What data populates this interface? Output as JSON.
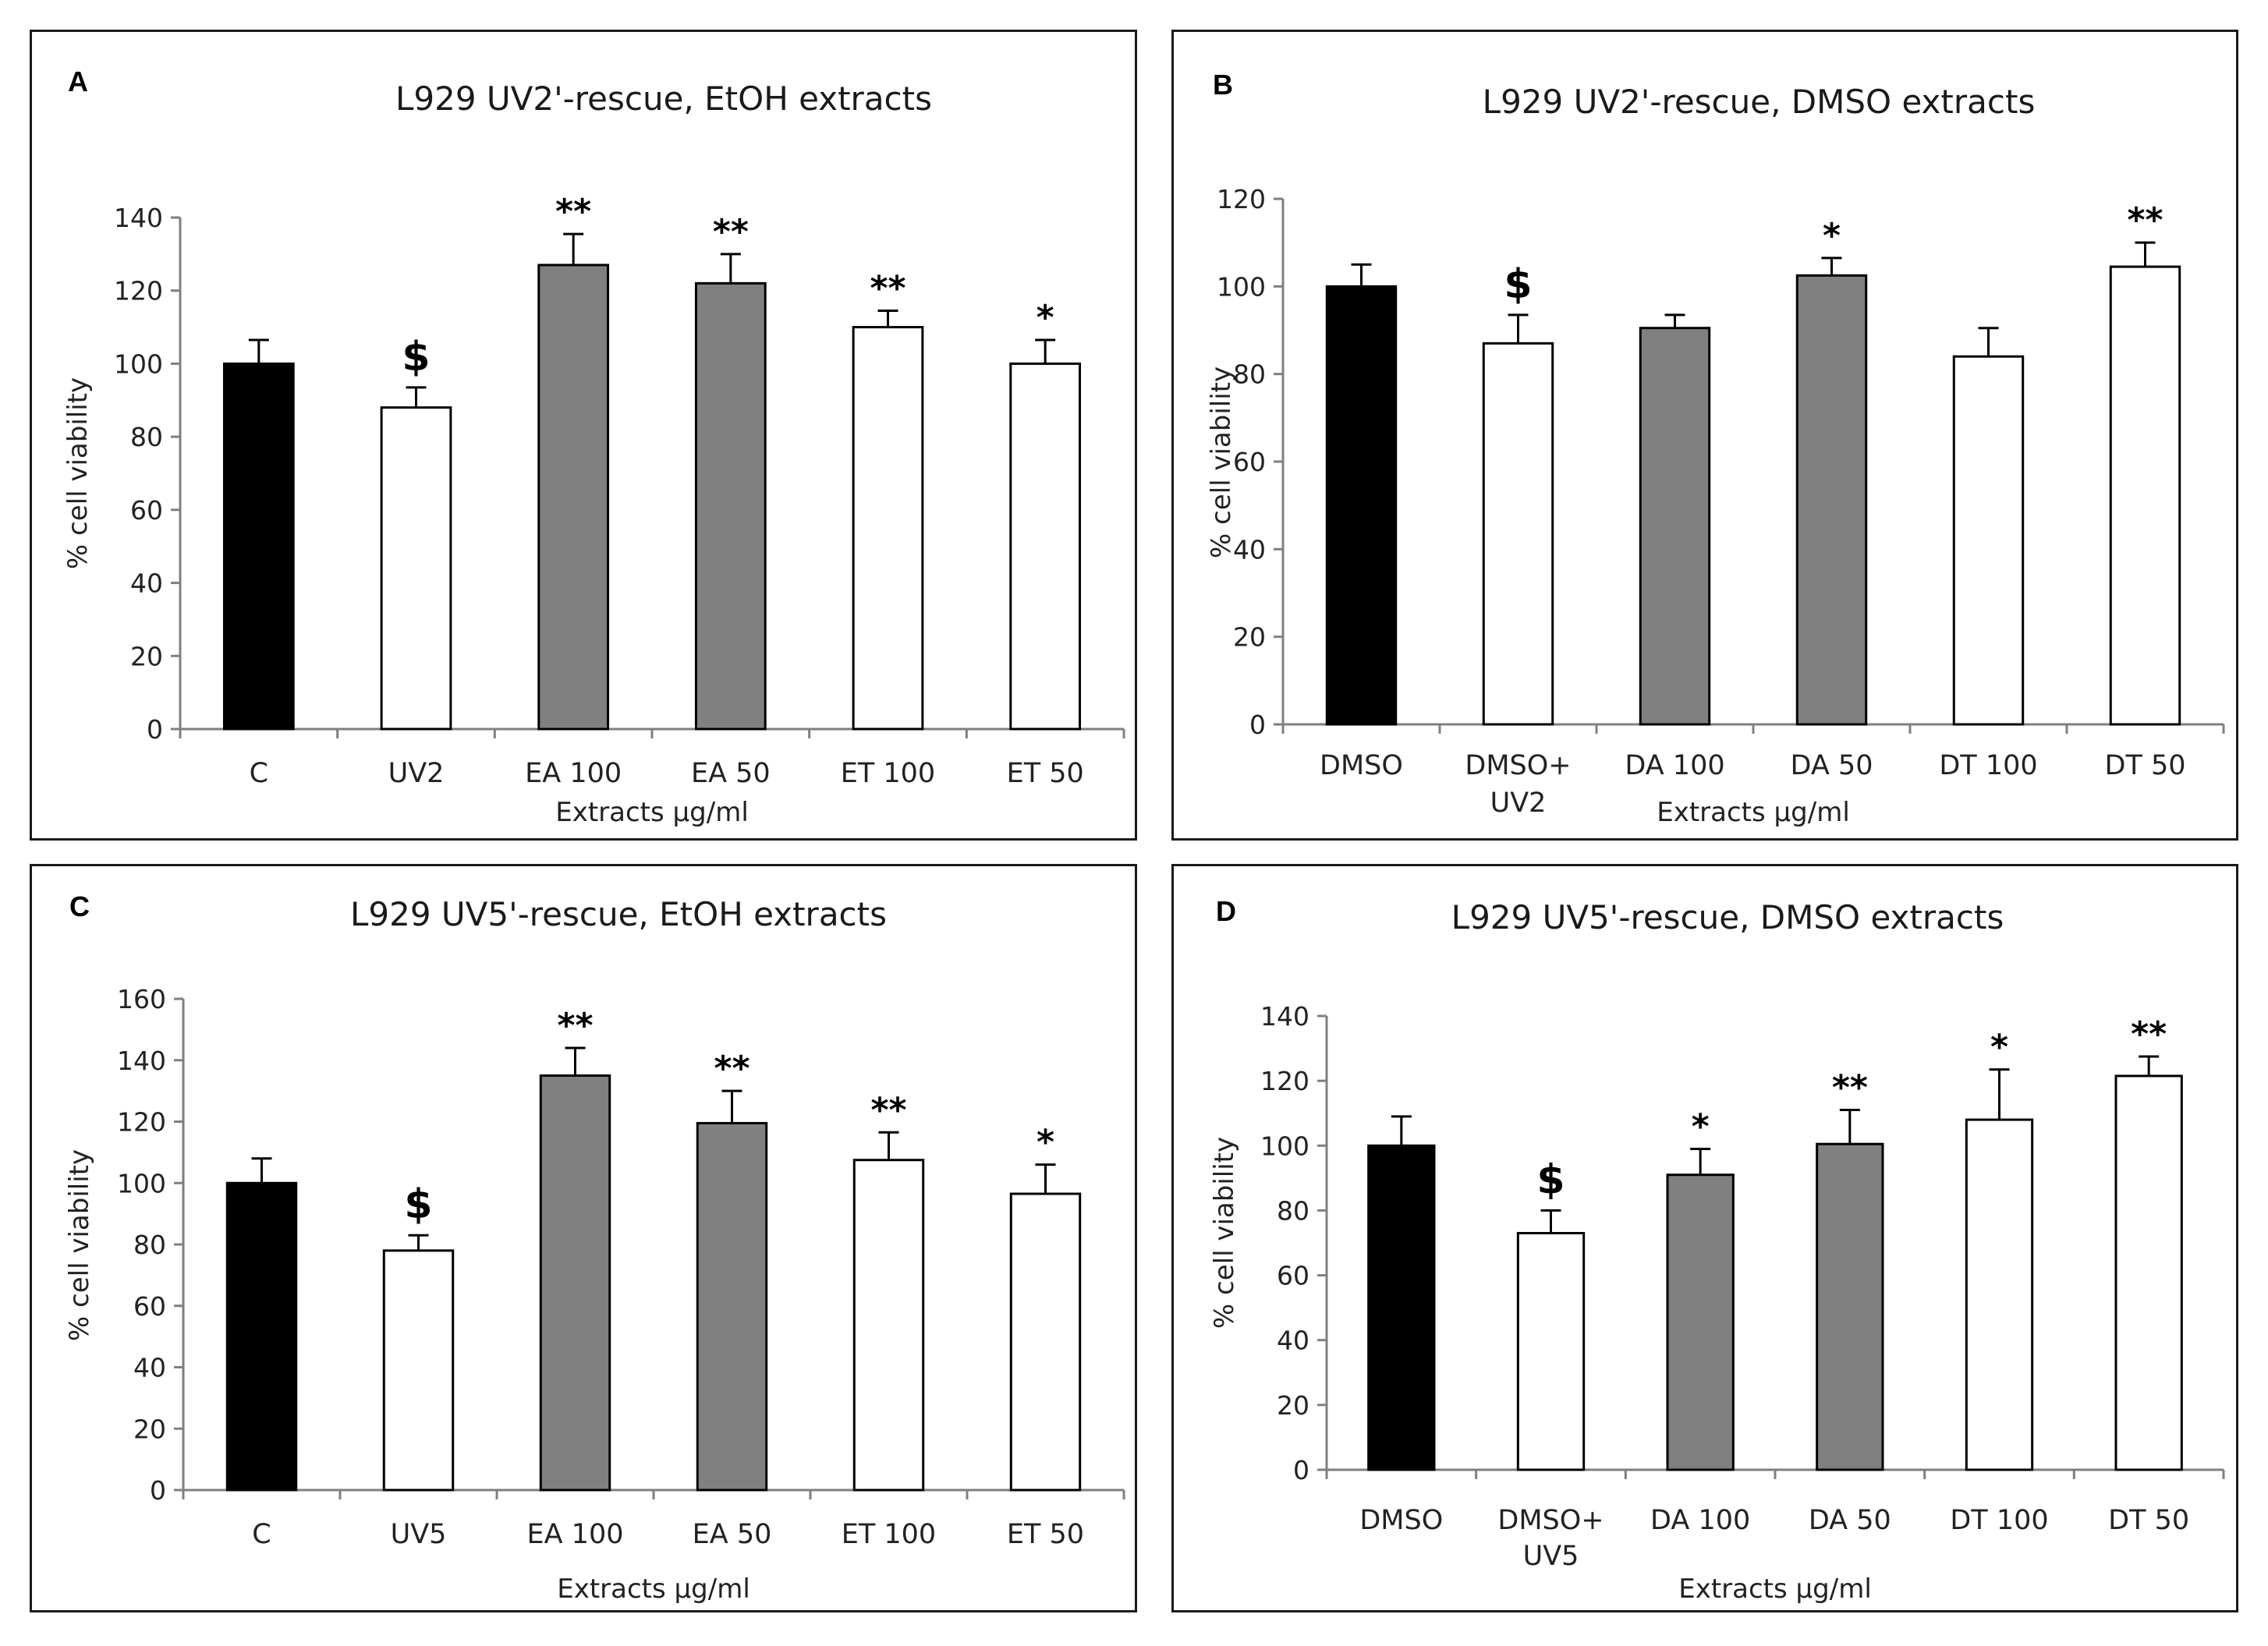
{
  "chart_data": [
    {
      "type": "bar",
      "panel_label": "A",
      "title": "L929 UV2'-rescue, EtOH extracts",
      "xlabel": "Extracts µg/ml",
      "ylabel": "% cell viability",
      "ylim": [
        0,
        140
      ],
      "yticks": [
        0,
        20,
        40,
        60,
        80,
        100,
        120,
        140
      ],
      "categories": [
        [
          "C"
        ],
        [
          "UV2"
        ],
        [
          "EA 100"
        ],
        [
          "EA 50"
        ],
        [
          "ET 100"
        ],
        [
          "ET 50"
        ]
      ],
      "values": [
        100,
        88,
        127,
        122,
        110,
        100
      ],
      "errors": [
        6.5,
        5.5,
        8.5,
        8,
        4.5,
        6.5
      ],
      "significance": [
        "",
        "$",
        "**",
        "**",
        "**",
        "*"
      ],
      "bar_colors": [
        "#000000",
        "#ffffff",
        "#808080",
        "#808080",
        "#ffffff",
        "#ffffff"
      ]
    },
    {
      "type": "bar",
      "panel_label": "B",
      "title": "L929 UV2'-rescue, DMSO extracts",
      "xlabel": "Extracts µg/ml",
      "ylabel": "% cell viability",
      "ylim": [
        0,
        120
      ],
      "yticks": [
        0,
        20,
        40,
        60,
        80,
        100,
        120
      ],
      "categories": [
        [
          "DMSO"
        ],
        [
          "DMSO+",
          "UV2"
        ],
        [
          "DA 100"
        ],
        [
          "DA 50"
        ],
        [
          "DT 100"
        ],
        [
          "DT 50"
        ]
      ],
      "values": [
        100,
        87,
        90.5,
        102.5,
        84,
        104.5
      ],
      "errors": [
        5,
        6.5,
        3,
        4,
        6.5,
        5.5
      ],
      "significance": [
        "",
        "$",
        "",
        "*",
        "",
        "**"
      ],
      "bar_colors": [
        "#000000",
        "#ffffff",
        "#808080",
        "#808080",
        "#ffffff",
        "#ffffff"
      ]
    },
    {
      "type": "bar",
      "panel_label": "C",
      "title": "L929 UV5'-rescue, EtOH extracts",
      "xlabel": "Extracts µg/ml",
      "ylabel": "% cell viability",
      "ylim": [
        0,
        160
      ],
      "yticks": [
        0,
        20,
        40,
        60,
        80,
        100,
        120,
        140,
        160
      ],
      "categories": [
        [
          "C"
        ],
        [
          "UV5"
        ],
        [
          "EA 100"
        ],
        [
          "EA 50"
        ],
        [
          "ET 100"
        ],
        [
          "ET 50"
        ]
      ],
      "values": [
        100,
        78,
        135,
        119.5,
        107.5,
        96.5
      ],
      "errors": [
        8,
        5,
        9,
        10.5,
        9,
        9.5
      ],
      "significance": [
        "",
        "$",
        "**",
        "**",
        "**",
        "*"
      ],
      "bar_colors": [
        "#000000",
        "#ffffff",
        "#808080",
        "#808080",
        "#ffffff",
        "#ffffff"
      ]
    },
    {
      "type": "bar",
      "panel_label": "D",
      "title": "L929 UV5'-rescue, DMSO extracts",
      "xlabel": "Extracts µg/ml",
      "ylabel": "% cell viability",
      "ylim": [
        0,
        140
      ],
      "yticks": [
        0,
        20,
        40,
        60,
        80,
        100,
        120,
        140
      ],
      "categories": [
        [
          "DMSO"
        ],
        [
          "DMSO+",
          "UV5"
        ],
        [
          "DA 100"
        ],
        [
          "DA 50"
        ],
        [
          "DT 100"
        ],
        [
          "DT 50"
        ]
      ],
      "values": [
        100,
        73,
        91,
        100.5,
        108,
        121.5
      ],
      "errors": [
        9,
        7,
        8,
        10.5,
        15.5,
        6
      ],
      "significance": [
        "",
        "$",
        "*",
        "**",
        "*",
        "**"
      ],
      "bar_colors": [
        "#000000",
        "#ffffff",
        "#808080",
        "#808080",
        "#ffffff",
        "#ffffff"
      ]
    }
  ]
}
